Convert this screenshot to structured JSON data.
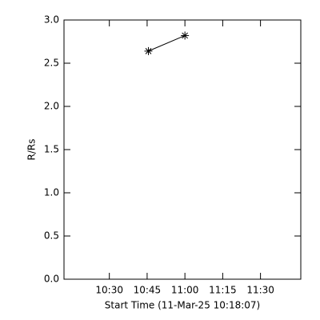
{
  "chart_data": {
    "type": "line",
    "xlabel": "Start Time (11-Mar-25 10:18:07)",
    "ylabel": "R/Rs",
    "x": [
      645.5,
      660
    ],
    "values": [
      2.64,
      2.82
    ],
    "color": "#000000",
    "marker": "asterisk",
    "xlim": [
      612,
      706
    ],
    "xticks": [
      {
        "value": 630,
        "label": "10:30"
      },
      {
        "value": 645,
        "label": "10:45"
      },
      {
        "value": 660,
        "label": "11:00"
      },
      {
        "value": 675,
        "label": "11:15"
      },
      {
        "value": 690,
        "label": "11:30"
      }
    ],
    "ylim": [
      0,
      3
    ],
    "yticks": [
      {
        "value": 0,
        "label": "0.0"
      },
      {
        "value": 0.5,
        "label": "0.5"
      },
      {
        "value": 1,
        "label": "1.0"
      },
      {
        "value": 1.5,
        "label": "1.5"
      },
      {
        "value": 2,
        "label": "2.0"
      },
      {
        "value": 2.5,
        "label": "2.5"
      },
      {
        "value": 3,
        "label": "3.0"
      }
    ]
  }
}
